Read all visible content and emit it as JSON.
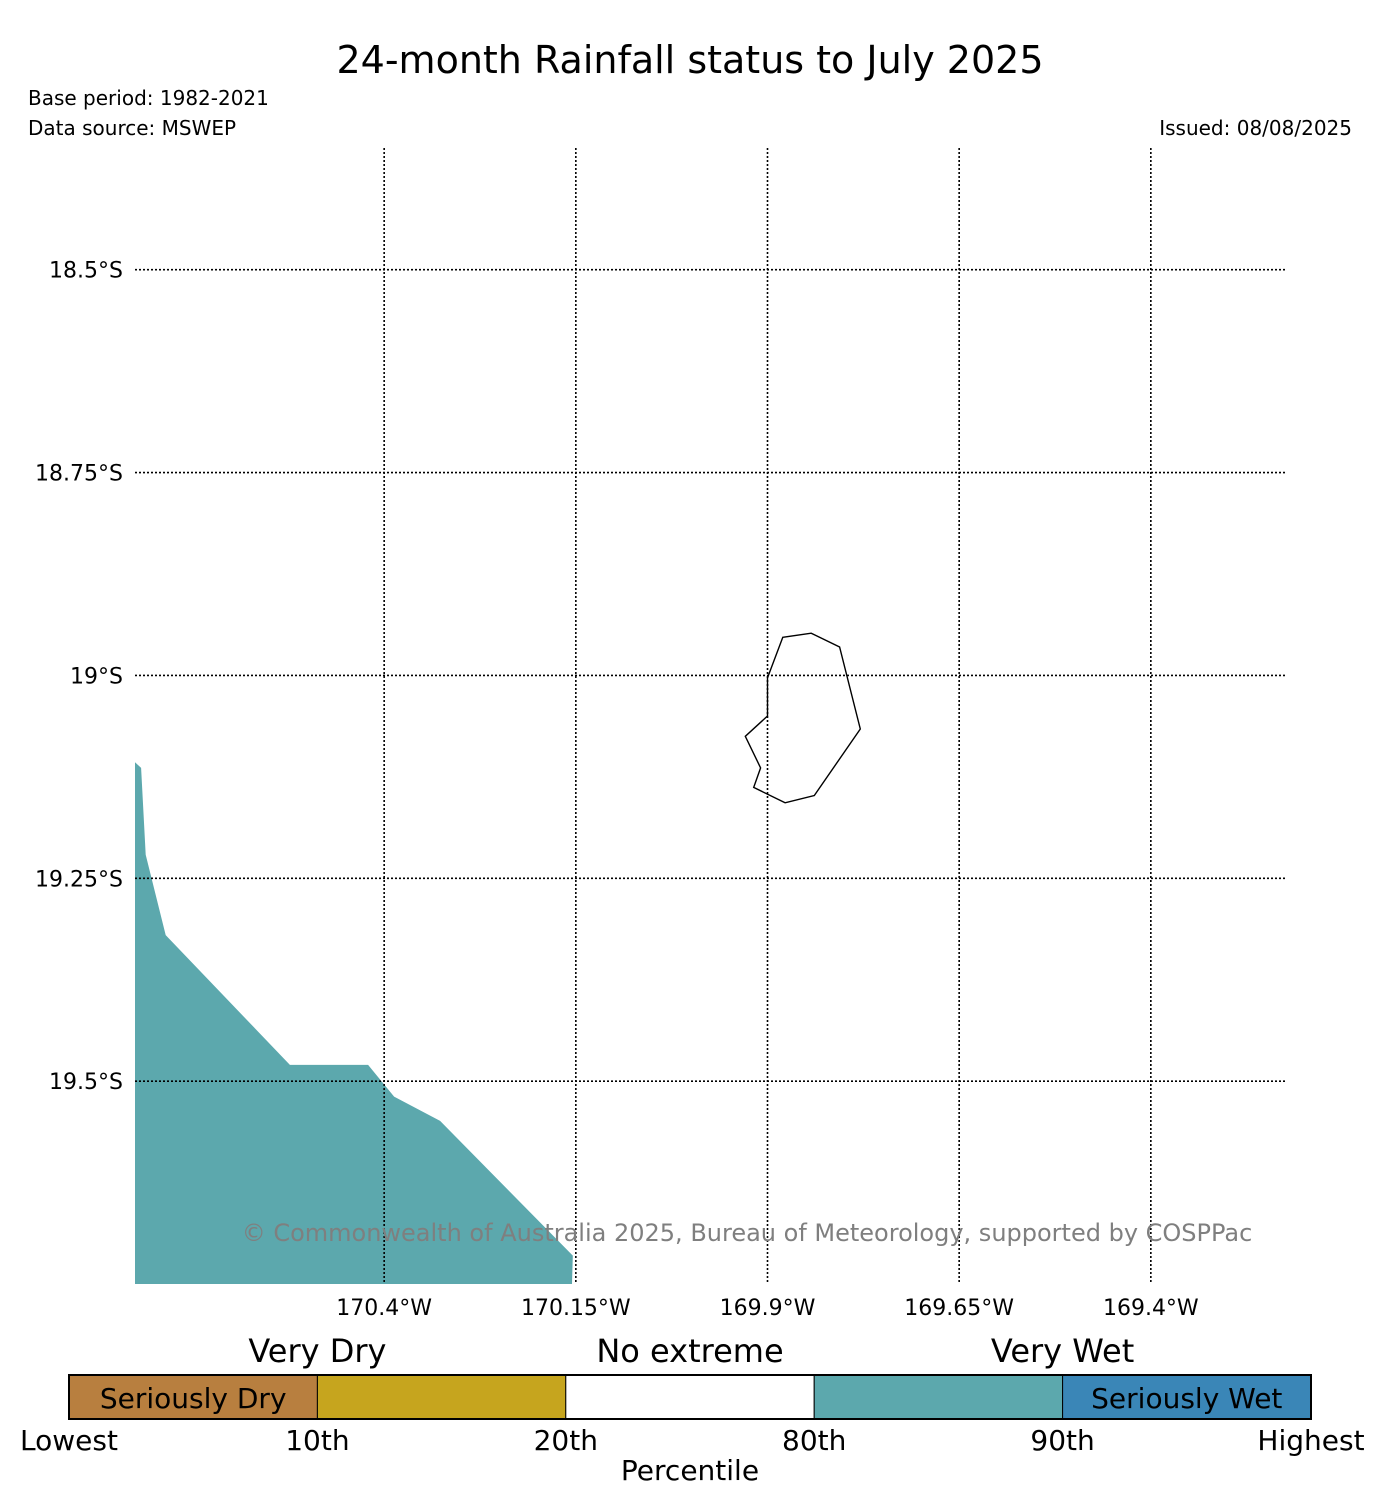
{
  "header": {
    "title": "24-month Rainfall status to July 2025",
    "base_period": "Base period: 1982-2021",
    "data_source": "Data source: MSWEP",
    "issued": "Issued: 08/08/2025"
  },
  "map": {
    "extent": {
      "lon_min": -170.725,
      "lon_max": -169.225,
      "lat_min": -19.75,
      "lat_max": -18.35
    },
    "lat_gridlines": [
      {
        "value": -18.5,
        "label": "18.5°S"
      },
      {
        "value": -18.75,
        "label": "18.75°S"
      },
      {
        "value": -19.0,
        "label": "19°S"
      },
      {
        "value": -19.25,
        "label": "19.25°S"
      },
      {
        "value": -19.5,
        "label": "19.5°S"
      }
    ],
    "lon_gridlines": [
      {
        "value": -170.4,
        "label": "170.4°W"
      },
      {
        "value": -170.15,
        "label": "170.15°W"
      },
      {
        "value": -169.9,
        "label": "169.9°W"
      },
      {
        "value": -169.65,
        "label": "169.65°W"
      },
      {
        "value": -169.4,
        "label": "169.4°W"
      }
    ],
    "island_outline": [
      [
        -169.88,
        -18.953
      ],
      [
        -169.843,
        -18.948
      ],
      [
        -169.806,
        -18.965
      ],
      [
        -169.779,
        -19.066
      ],
      [
        -169.839,
        -19.148
      ],
      [
        -169.877,
        -19.157
      ],
      [
        -169.918,
        -19.138
      ],
      [
        -169.909,
        -19.114
      ],
      [
        -169.929,
        -19.075
      ],
      [
        -169.9,
        -19.05
      ],
      [
        -169.9,
        -19.003
      ]
    ],
    "shaded_region": {
      "category": "Very Wet",
      "color": "#5ca8ad",
      "polygon": [
        [
          -170.725,
          -19.107
        ],
        [
          -170.717,
          -19.114
        ],
        [
          -170.711,
          -19.221
        ],
        [
          -170.685,
          -19.32
        ],
        [
          -170.523,
          -19.48
        ],
        [
          -170.421,
          -19.48
        ],
        [
          -170.387,
          -19.519
        ],
        [
          -170.327,
          -19.549
        ],
        [
          -170.154,
          -19.715
        ],
        [
          -170.155,
          -19.75
        ],
        [
          -170.725,
          -19.75
        ]
      ]
    },
    "copyright": "© Commonwealth of Australia 2025, Bureau of Meteorology, supported by COSPPac"
  },
  "legend": {
    "category_labels": [
      "Very Dry",
      "No extreme",
      "Very Wet"
    ],
    "segments": [
      {
        "label": "Seriously Dry",
        "color": "#b87f3f"
      },
      {
        "label": "",
        "color": "#c6a51e"
      },
      {
        "label": "",
        "color": "#ffffff"
      },
      {
        "label": "",
        "color": "#5ca8ad"
      },
      {
        "label": "Seriously Wet",
        "color": "#3a86b7"
      }
    ],
    "ticks": [
      "Lowest",
      "10th",
      "20th",
      "80th",
      "90th",
      "Highest"
    ],
    "axis_title": "Percentile"
  }
}
